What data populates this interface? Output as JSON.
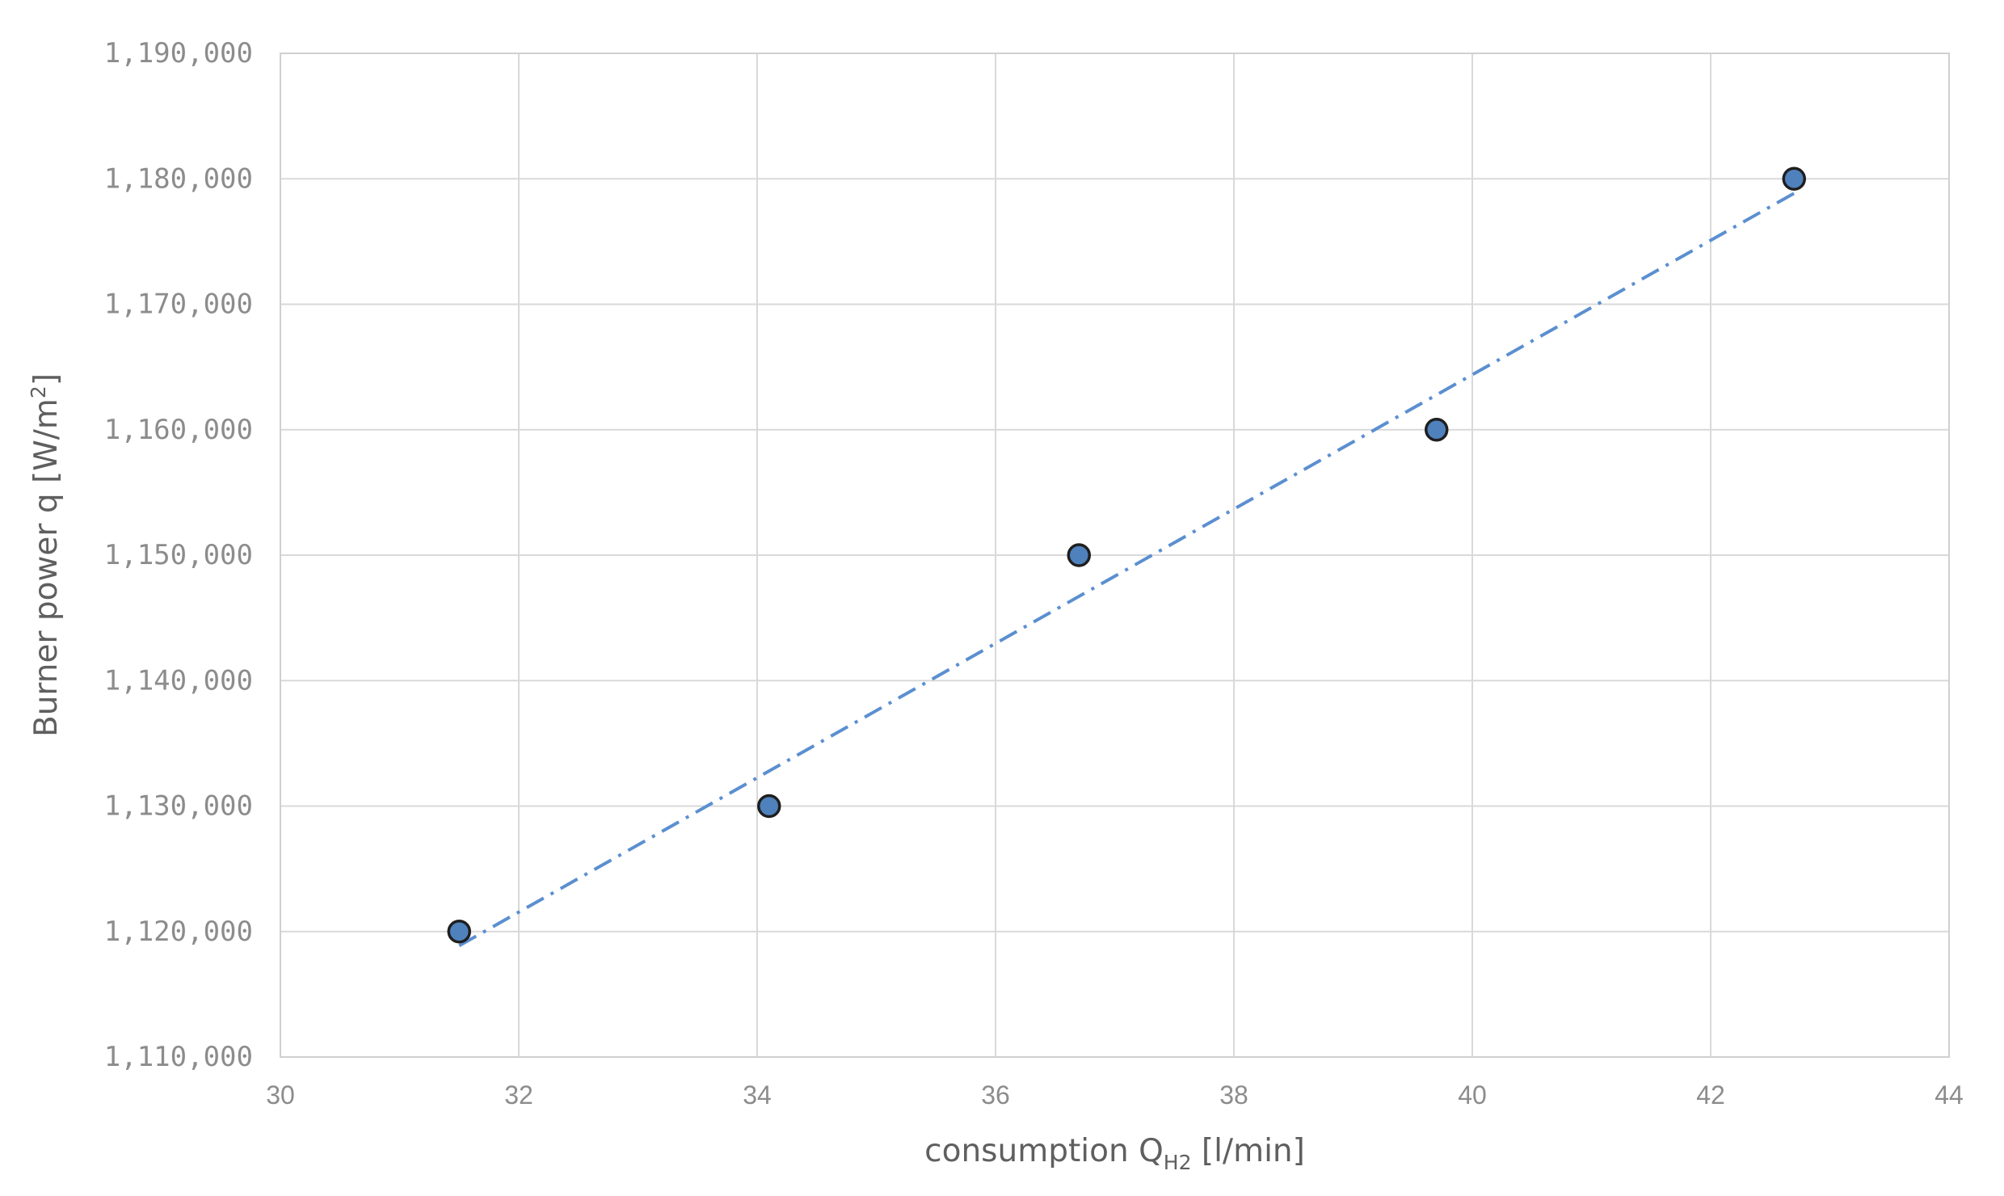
{
  "chart_data": {
    "type": "scatter",
    "xlabel": {
      "main": "consumption Q",
      "sub": "H2",
      "unit": " [l/min]"
    },
    "ylabel": {
      "main": "Burner power q [W/m",
      "sup": "2",
      "end": "]"
    },
    "xlim": [
      30,
      44
    ],
    "ylim": [
      1110000,
      1190000
    ],
    "xticks": [
      "30",
      "32",
      "34",
      "36",
      "38",
      "40",
      "42",
      "44"
    ],
    "yticks": [
      "1,110,000",
      "1,120,000",
      "1,130,000",
      "1,140,000",
      "1,150,000",
      "1,160,000",
      "1,170,000",
      "1,180,000",
      "1,190,000"
    ],
    "grid": true,
    "series": [
      {
        "points": [
          {
            "x": 31.5,
            "y": 1120000
          },
          {
            "x": 34.1,
            "y": 1130000
          },
          {
            "x": 36.7,
            "y": 1150000
          },
          {
            "x": 39.7,
            "y": 1160000
          },
          {
            "x": 42.7,
            "y": 1180000
          }
        ],
        "marker_color": "#4f81bd",
        "marker_edge": "#1f1f1f"
      }
    ],
    "trendline": {
      "type": "linear",
      "style": "dash-dot",
      "color": "#5b8fd0",
      "x_from": 31.5,
      "x_to": 42.7
    }
  }
}
